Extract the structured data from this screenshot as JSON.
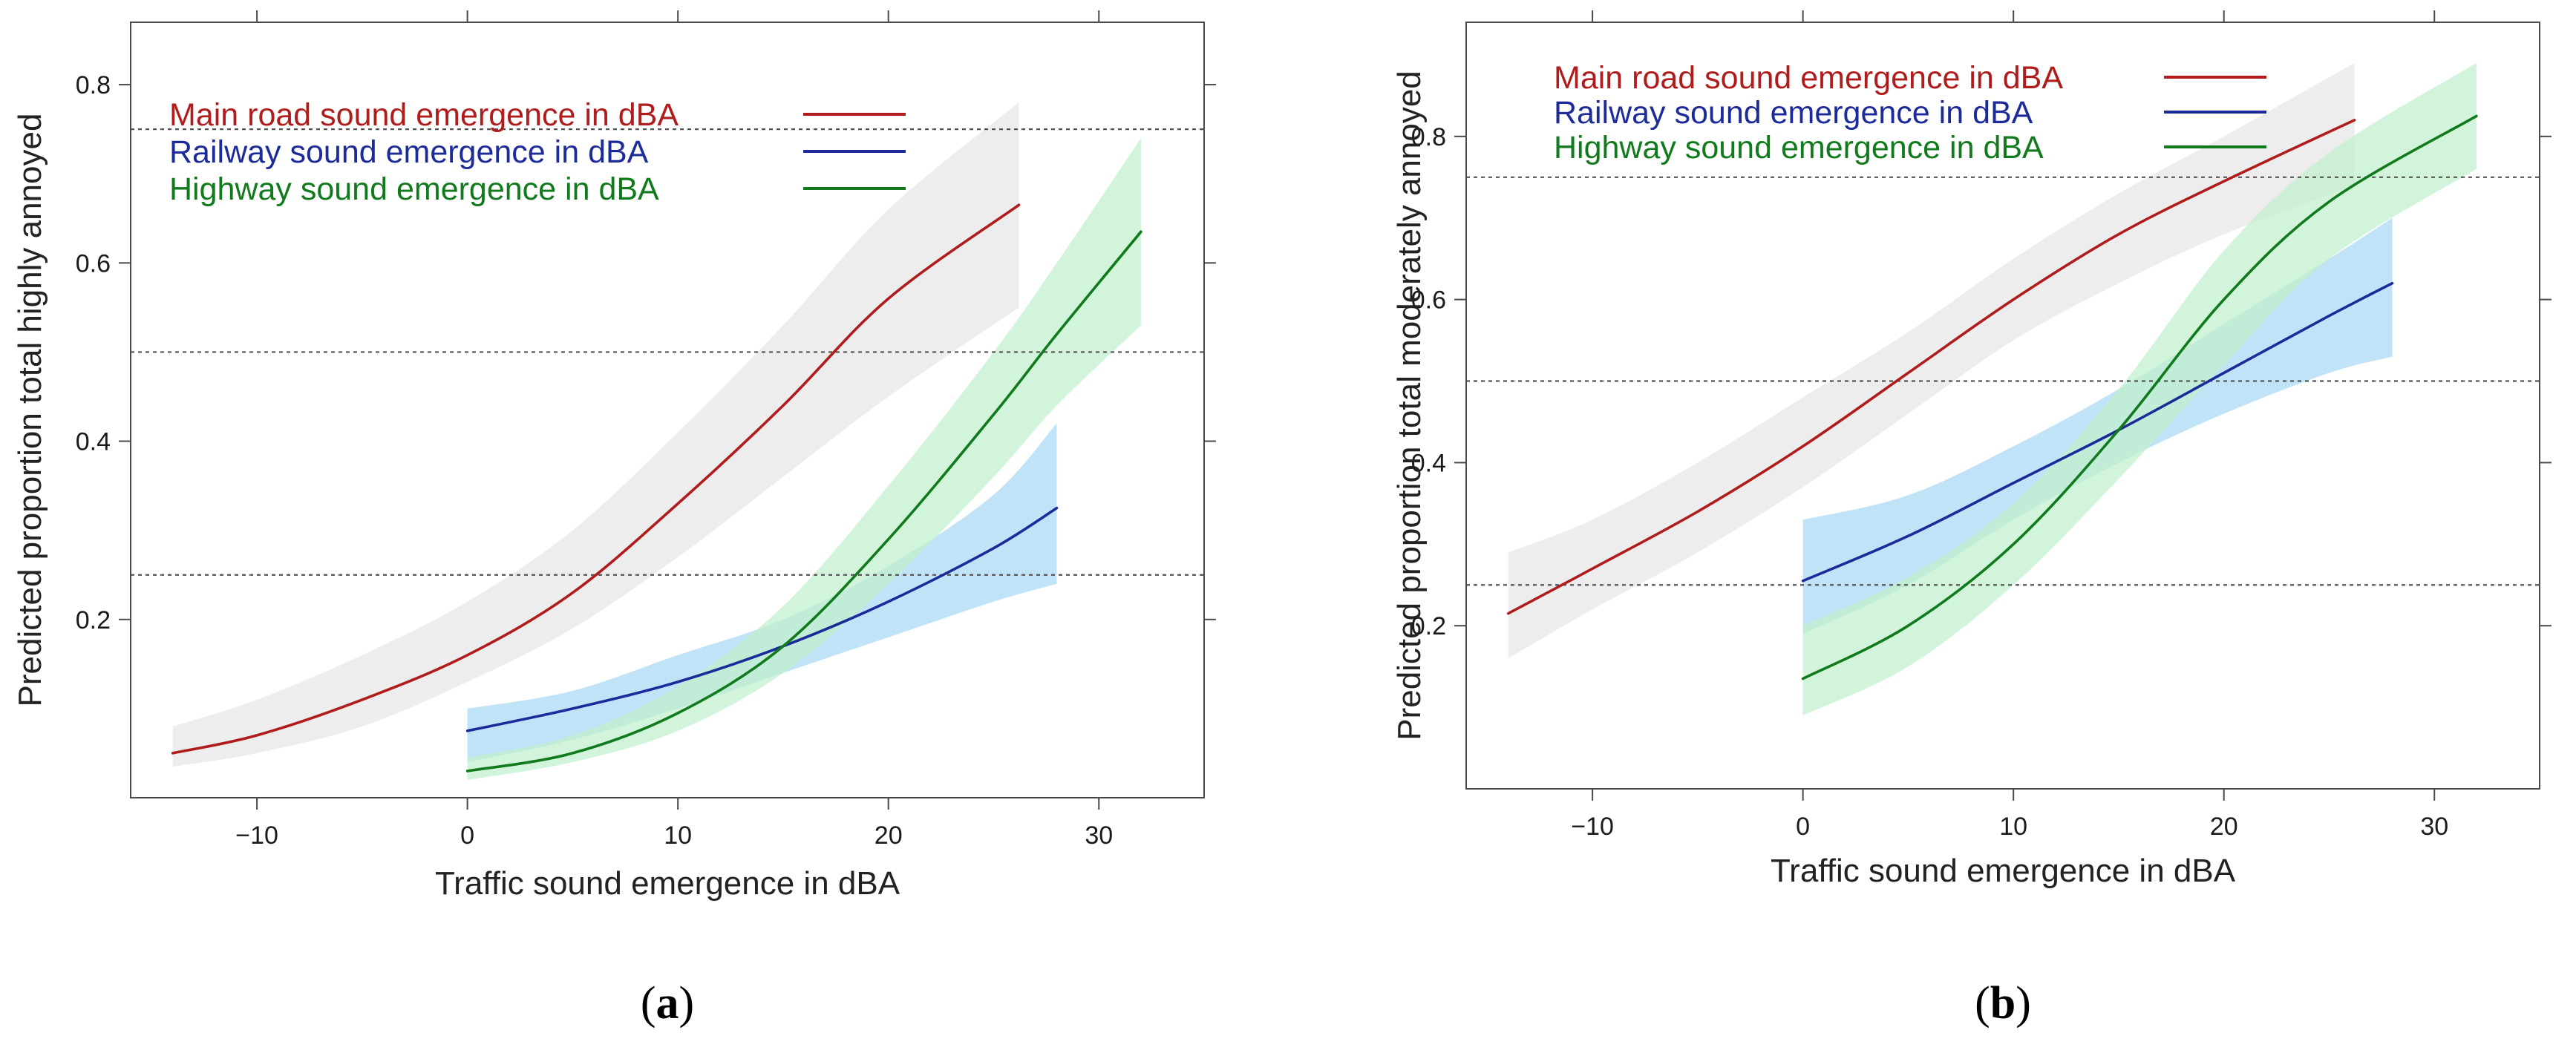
{
  "chart_data": [
    {
      "type": "line",
      "panel_label": "(a)",
      "xlabel": "Traffic sound emergence in dBA",
      "ylabel": "Predicted proportion total highly annoyed",
      "xlim": [
        -16,
        35
      ],
      "ylim": [
        0,
        0.87
      ],
      "xticks": [
        -10,
        0,
        10,
        20,
        30
      ],
      "xtick_labels": [
        "−10",
        "0",
        "10",
        "20",
        "30"
      ],
      "yticks": [
        0.2,
        0.4,
        0.6,
        0.8
      ],
      "ytick_labels": [
        "0.2",
        "0.4",
        "0.6",
        "0.8"
      ],
      "reference_lines": [
        0.25,
        0.5,
        0.75
      ],
      "legend_position": "top-left",
      "series": [
        {
          "name": "Main road sound emergence in dBA",
          "color": "#b01c1c",
          "band_color": "#e6e6e6",
          "x": [
            -14,
            -10,
            -5,
            0,
            5,
            10,
            15,
            20,
            26.2
          ],
          "y": [
            0.05,
            0.07,
            0.11,
            0.16,
            0.23,
            0.33,
            0.44,
            0.56,
            0.665
          ],
          "lower": [
            0.035,
            0.05,
            0.08,
            0.13,
            0.19,
            0.27,
            0.36,
            0.45,
            0.55
          ],
          "upper": [
            0.08,
            0.11,
            0.16,
            0.22,
            0.3,
            0.41,
            0.53,
            0.66,
            0.78
          ]
        },
        {
          "name": "Railway sound emergence in dBA",
          "color": "#1c2b99",
          "band_color": "#a8d8f5",
          "x": [
            0,
            5,
            10,
            15,
            20,
            25,
            28
          ],
          "y": [
            0.075,
            0.1,
            0.13,
            0.17,
            0.22,
            0.28,
            0.325
          ],
          "lower": [
            0.04,
            0.065,
            0.1,
            0.14,
            0.18,
            0.22,
            0.24
          ],
          "upper": [
            0.1,
            0.12,
            0.16,
            0.2,
            0.26,
            0.34,
            0.42
          ]
        },
        {
          "name": "Highway sound emergence in dBA",
          "color": "#117a1c",
          "band_color": "#bff0cc",
          "x": [
            0,
            5,
            10,
            15,
            20,
            25,
            28,
            32
          ],
          "y": [
            0.03,
            0.05,
            0.095,
            0.17,
            0.29,
            0.43,
            0.52,
            0.635
          ],
          "lower": [
            0.02,
            0.04,
            0.075,
            0.14,
            0.24,
            0.36,
            0.44,
            0.53
          ],
          "upper": [
            0.045,
            0.07,
            0.125,
            0.215,
            0.35,
            0.5,
            0.6,
            0.74
          ]
        }
      ]
    },
    {
      "type": "line",
      "panel_label": "(b)",
      "xlabel": "Traffic sound emergence in dBA",
      "ylabel": "Predicted proportion total moderately annoyed",
      "xlim": [
        -16,
        35
      ],
      "ylim": [
        0,
        0.94
      ],
      "xticks": [
        -10,
        0,
        10,
        20,
        30
      ],
      "xtick_labels": [
        "−10",
        "0",
        "10",
        "20",
        "30"
      ],
      "yticks": [
        0.2,
        0.4,
        0.6,
        0.8
      ],
      "ytick_labels": [
        "0.2",
        "0.4",
        "0.6",
        "0.8"
      ],
      "reference_lines": [
        0.25,
        0.5,
        0.75
      ],
      "legend_position": "top-left",
      "series": [
        {
          "name": "Main road sound emergence in dBA",
          "color": "#b01c1c",
          "band_color": "#e6e6e6",
          "x": [
            -14,
            -10,
            -5,
            0,
            5,
            10,
            15,
            20,
            26.2
          ],
          "y": [
            0.215,
            0.27,
            0.34,
            0.42,
            0.51,
            0.6,
            0.68,
            0.745,
            0.82
          ],
          "lower": [
            0.16,
            0.22,
            0.29,
            0.37,
            0.46,
            0.55,
            0.62,
            0.68,
            0.74
          ],
          "upper": [
            0.29,
            0.33,
            0.4,
            0.48,
            0.56,
            0.65,
            0.73,
            0.8,
            0.89
          ]
        },
        {
          "name": "Railway sound emergence in dBA",
          "color": "#1c2b99",
          "band_color": "#a8d8f5",
          "x": [
            0,
            5,
            10,
            15,
            20,
            25,
            28
          ],
          "y": [
            0.255,
            0.31,
            0.375,
            0.44,
            0.51,
            0.58,
            0.62
          ],
          "lower": [
            0.19,
            0.25,
            0.33,
            0.4,
            0.46,
            0.51,
            0.53
          ],
          "upper": [
            0.33,
            0.36,
            0.42,
            0.49,
            0.57,
            0.65,
            0.7
          ]
        },
        {
          "name": "Highway sound emergence in dBA",
          "color": "#117a1c",
          "band_color": "#bff0cc",
          "x": [
            0,
            5,
            10,
            15,
            20,
            25,
            32
          ],
          "y": [
            0.135,
            0.2,
            0.3,
            0.44,
            0.6,
            0.72,
            0.825
          ],
          "lower": [
            0.09,
            0.15,
            0.25,
            0.38,
            0.52,
            0.65,
            0.76
          ],
          "upper": [
            0.2,
            0.26,
            0.35,
            0.49,
            0.66,
            0.78,
            0.89
          ]
        }
      ]
    }
  ]
}
